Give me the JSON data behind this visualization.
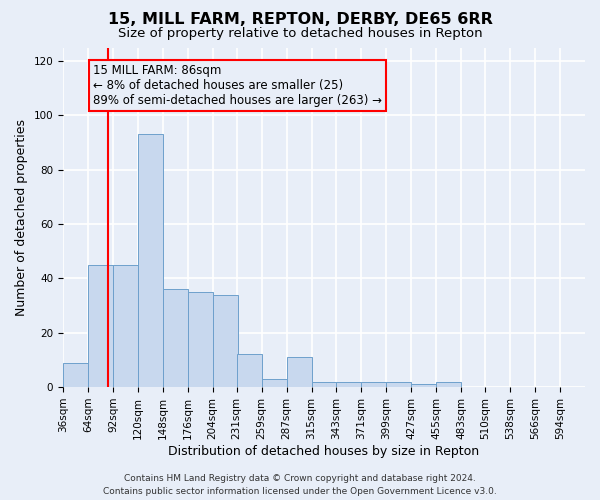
{
  "title": "15, MILL FARM, REPTON, DERBY, DE65 6RR",
  "subtitle": "Size of property relative to detached houses in Repton",
  "xlabel": "Distribution of detached houses by size in Repton",
  "ylabel": "Number of detached properties",
  "bin_labels": [
    "36sqm",
    "64sqm",
    "92sqm",
    "120sqm",
    "148sqm",
    "176sqm",
    "204sqm",
    "231sqm",
    "259sqm",
    "287sqm",
    "315sqm",
    "343sqm",
    "371sqm",
    "399sqm",
    "427sqm",
    "455sqm",
    "483sqm",
    "510sqm",
    "538sqm",
    "566sqm",
    "594sqm"
  ],
  "bin_edges": [
    36,
    64,
    92,
    120,
    148,
    176,
    204,
    231,
    259,
    287,
    315,
    343,
    371,
    399,
    427,
    455,
    483,
    510,
    538,
    566,
    594
  ],
  "bar_heights": [
    9,
    45,
    45,
    93,
    36,
    35,
    34,
    12,
    3,
    11,
    2,
    2,
    2,
    2,
    1,
    2,
    0,
    0,
    0,
    0
  ],
  "bar_color": "#c8d8ee",
  "bar_edgecolor": "#6ea0cc",
  "bg_color": "#e8eef8",
  "grid_color": "#ffffff",
  "red_line_x": 86,
  "annotation_line1": "15 MILL FARM: 86sqm",
  "annotation_line2": "← 8% of detached houses are smaller (25)",
  "annotation_line3": "89% of semi-detached houses are larger (263) →",
  "ylim": [
    0,
    125
  ],
  "yticks": [
    0,
    20,
    40,
    60,
    80,
    100,
    120
  ],
  "footer1": "Contains HM Land Registry data © Crown copyright and database right 2024.",
  "footer2": "Contains public sector information licensed under the Open Government Licence v3.0.",
  "title_fontsize": 11.5,
  "subtitle_fontsize": 9.5,
  "axis_label_fontsize": 9,
  "tick_fontsize": 7.5,
  "annotation_fontsize": 8.5,
  "footer_fontsize": 6.5
}
